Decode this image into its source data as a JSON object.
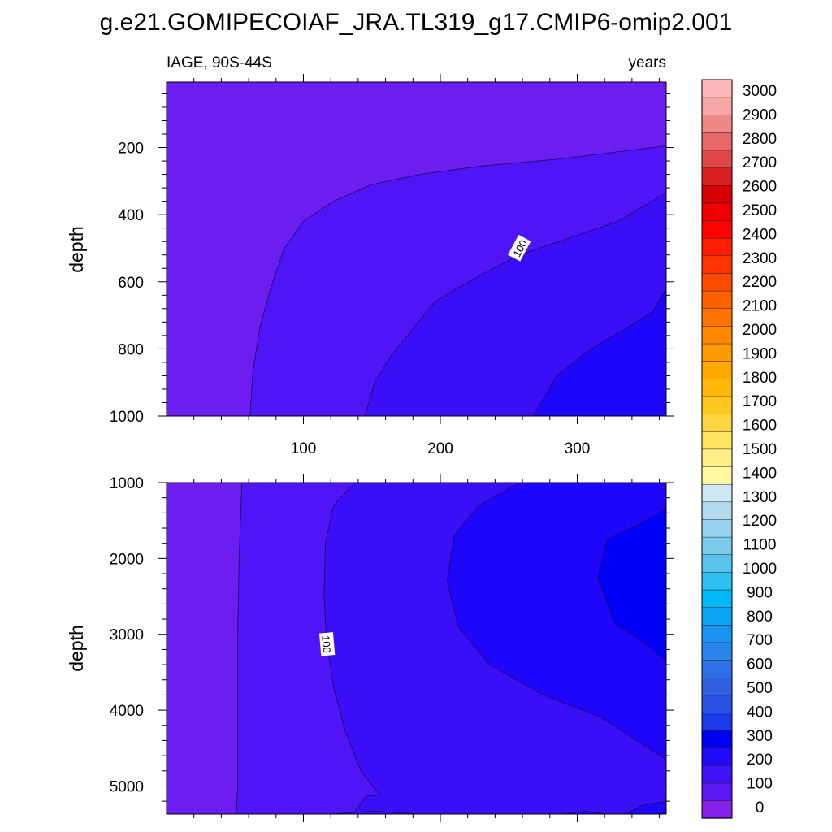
{
  "figure": {
    "title": "g.e21.GOMIPECOIAF_JRA.TL319_g17.CMIP6-omip2.001",
    "left_label": "IAGE, 90S-44S",
    "right_label": "years"
  },
  "colors": {
    "c0_100": "#6c1df0",
    "c100_200": "#4f15f6",
    "c200_300": "#3a0ff8",
    "c300_400": "#1d06fa",
    "c400_500": "#0000fa"
  },
  "chart_data": [
    {
      "type": "contour",
      "panel": "top",
      "variable": "IAGE",
      "region": "90S-44S",
      "units": "years",
      "xlabel": "",
      "ylabel": "depth",
      "xlim": [
        0,
        365
      ],
      "ylim": [
        1000,
        5
      ],
      "y_reversed": true,
      "x_ticks": [
        100,
        200,
        300
      ],
      "y_ticks": [
        200,
        400,
        600,
        800,
        1000
      ],
      "contour_labels": [
        {
          "text": "100",
          "x": 258,
          "y": 500
        }
      ],
      "contours": [
        {
          "level": 50,
          "points": [
            [
              61,
              1000
            ],
            [
              63,
              870
            ],
            [
              68,
              740
            ],
            [
              76,
              620
            ],
            [
              86,
              500
            ],
            [
              100,
              420
            ],
            [
              122,
              360
            ],
            [
              150,
              310
            ],
            [
              185,
              280
            ],
            [
              230,
              255
            ],
            [
              285,
              235
            ],
            [
              365,
              195
            ]
          ]
        },
        {
          "level": 100,
          "points": [
            [
              145,
              1000
            ],
            [
              152,
              900
            ],
            [
              164,
              820
            ],
            [
              180,
              740
            ],
            [
              196,
              660
            ],
            [
              212,
              620
            ],
            [
              232,
              575
            ],
            [
              258,
              520
            ],
            [
              290,
              475
            ],
            [
              330,
              420
            ],
            [
              365,
              335
            ]
          ]
        },
        {
          "level": 150,
          "points": [
            [
              268,
              1000
            ],
            [
              285,
              880
            ],
            [
              310,
              800
            ],
            [
              335,
              740
            ],
            [
              355,
              690
            ],
            [
              365,
              620
            ]
          ]
        }
      ]
    },
    {
      "type": "contour",
      "panel": "bottom",
      "variable": "IAGE",
      "region": "90S-44S",
      "units": "years",
      "xlabel": "",
      "ylabel": "depth",
      "xlim": [
        0,
        365
      ],
      "ylim": [
        5370,
        1000
      ],
      "y_reversed": true,
      "x_ticks": [
        100,
        200,
        300
      ],
      "y_ticks": [
        1000,
        2000,
        3000,
        4000,
        5000
      ],
      "contour_labels": [
        {
          "text": "100",
          "x": 117,
          "y": 3130
        }
      ],
      "contours": [
        {
          "level": 50,
          "points": [
            [
              55,
              1000
            ],
            [
              53,
              2000
            ],
            [
              52,
              3000
            ],
            [
              52,
              4000
            ],
            [
              52,
              5000
            ],
            [
              51,
              5370
            ]
          ]
        },
        {
          "level": 100,
          "points": [
            [
              138,
              1000
            ],
            [
              122,
              1300
            ],
            [
              116,
              1800
            ],
            [
              115,
              2500
            ],
            [
              117,
              3100
            ],
            [
              122,
              3700
            ],
            [
              131,
              4300
            ],
            [
              142,
              4800
            ],
            [
              156,
              5120
            ],
            [
              146,
              5130
            ],
            [
              136,
              5370
            ]
          ]
        },
        {
          "level": 150,
          "points": [
            [
              258,
              1000
            ],
            [
              228,
              1300
            ],
            [
              210,
              1700
            ],
            [
              205,
              2300
            ],
            [
              213,
              2900
            ],
            [
              236,
              3400
            ],
            [
              275,
              3800
            ],
            [
              318,
              4100
            ],
            [
              365,
              4650
            ]
          ]
        },
        {
          "level": 200,
          "points": [
            [
              365,
              1350
            ],
            [
              345,
              1550
            ],
            [
              322,
              1750
            ],
            [
              315,
              2250
            ],
            [
              327,
              2850
            ],
            [
              348,
              3100
            ],
            [
              365,
              3350
            ]
          ]
        },
        {
          "level": 160,
          "points": [
            [
              120,
              5370
            ],
            [
              150,
              5330
            ],
            [
              185,
              5370
            ]
          ]
        },
        {
          "level": 170,
          "points": [
            [
              290,
              5370
            ],
            [
              305,
              5330
            ],
            [
              322,
              5370
            ]
          ]
        },
        {
          "level": 175,
          "points": [
            [
              335,
              5370
            ],
            [
              348,
              5250
            ],
            [
              365,
              5200
            ]
          ]
        }
      ]
    },
    {
      "type": "colorbar",
      "orientation": "vertical",
      "units": "years",
      "levels": [
        0,
        100,
        200,
        300,
        400,
        500,
        600,
        700,
        800,
        900,
        1000,
        1100,
        1200,
        1300,
        1400,
        1500,
        1600,
        1700,
        1800,
        1900,
        2000,
        2100,
        2200,
        2300,
        2400,
        2500,
        2600,
        2700,
        2800,
        2900,
        3000
      ],
      "bin_colors": [
        "#8520ea",
        "#5a17f2",
        "#3e11f6",
        "#2109fa",
        "#0000f0",
        "#1a3ae8",
        "#2a52e2",
        "#3060e0",
        "#2e70e6",
        "#2a84ec",
        "#1894f0",
        "#0aa6f4",
        "#00b8f8",
        "#2ec0f0",
        "#58c4ee",
        "#7ccbed",
        "#98d2ee",
        "#b2dbef",
        "#cde8f4",
        "#fff8a0",
        "#ffef88",
        "#ffe460",
        "#ffd640",
        "#ffc820",
        "#ffb80a",
        "#ffa800",
        "#ff9a00",
        "#ff8800",
        "#ff7400",
        "#ff6000",
        "#ff4a00",
        "#ff3400",
        "#ff1e00",
        "#ff0000",
        "#ee0000",
        "#d60000",
        "#d82020",
        "#e04848",
        "#e86868",
        "#f08888",
        "#f8a6a6",
        "#ffb8b8"
      ]
    }
  ]
}
